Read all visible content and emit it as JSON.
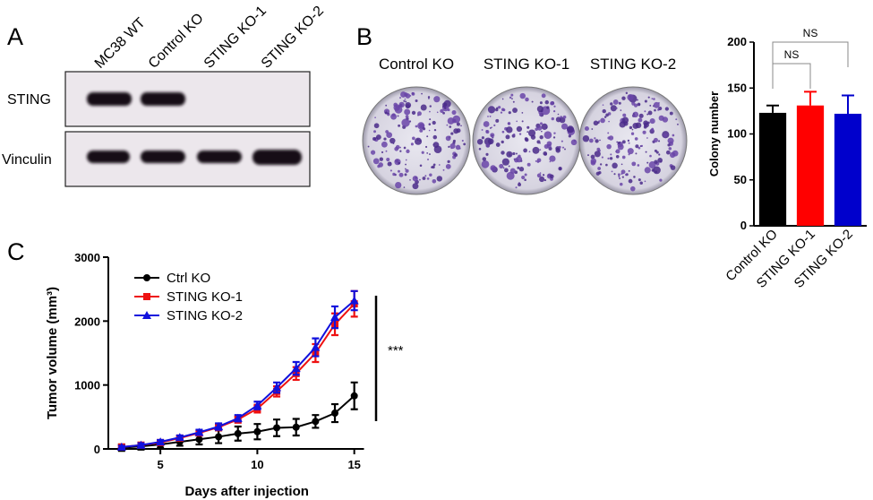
{
  "panels": [
    "A",
    "B",
    "C"
  ],
  "blot": {
    "lanes": [
      "MC38 WT",
      "Control KO",
      "STING KO-1",
      "STING KO-2"
    ],
    "rows": [
      "STING",
      "Vinculin"
    ]
  },
  "colony_plates": [
    "Control KO",
    "STING KO-1",
    "STING KO-2"
  ],
  "chart_data": [
    {
      "type": "bar",
      "categories": [
        "Control KO",
        "STING KO-1",
        "STING KO-2"
      ],
      "values": [
        123,
        131,
        122
      ],
      "errors": [
        8,
        15,
        20
      ],
      "colors": [
        "#000000",
        "#ff0000",
        "#0000cc"
      ],
      "ylabel": "Colony number",
      "ylim": [
        0,
        200
      ],
      "yticks": [
        0,
        50,
        100,
        150,
        200
      ],
      "annotations": [
        "NS",
        "NS"
      ]
    },
    {
      "type": "line",
      "xlabel": "Days after injection",
      "ylabel": "Tumor volume (mm³)",
      "x": [
        3,
        4,
        5,
        6,
        7,
        8,
        9,
        10,
        11,
        12,
        13,
        14,
        15
      ],
      "series": [
        {
          "name": "Ctrl KO",
          "color": "#000000",
          "marker": "circle",
          "values": [
            20,
            40,
            70,
            110,
            150,
            190,
            240,
            270,
            330,
            340,
            430,
            560,
            830
          ],
          "errors": [
            50,
            50,
            50,
            60,
            80,
            100,
            110,
            120,
            130,
            130,
            100,
            140,
            210
          ]
        },
        {
          "name": "STING KO-1",
          "color": "#ee1111",
          "marker": "square",
          "values": [
            30,
            60,
            100,
            170,
            250,
            340,
            460,
            630,
            900,
            1180,
            1500,
            1950,
            2270
          ],
          "errors": [
            20,
            30,
            30,
            30,
            40,
            50,
            50,
            60,
            80,
            100,
            140,
            170,
            200
          ]
        },
        {
          "name": "STING KO-2",
          "color": "#1111dd",
          "marker": "triangle",
          "values": [
            30,
            60,
            110,
            180,
            260,
            350,
            480,
            680,
            960,
            1260,
            1590,
            2060,
            2320
          ],
          "errors": [
            20,
            30,
            30,
            30,
            40,
            50,
            50,
            60,
            80,
            100,
            140,
            170,
            150
          ]
        }
      ],
      "xlim": [
        2.5,
        15.5
      ],
      "xticks": [
        5,
        10,
        15
      ],
      "ylim": [
        0,
        3000
      ],
      "yticks": [
        0,
        1000,
        2000,
        3000
      ],
      "annotations": [
        "***"
      ]
    }
  ]
}
